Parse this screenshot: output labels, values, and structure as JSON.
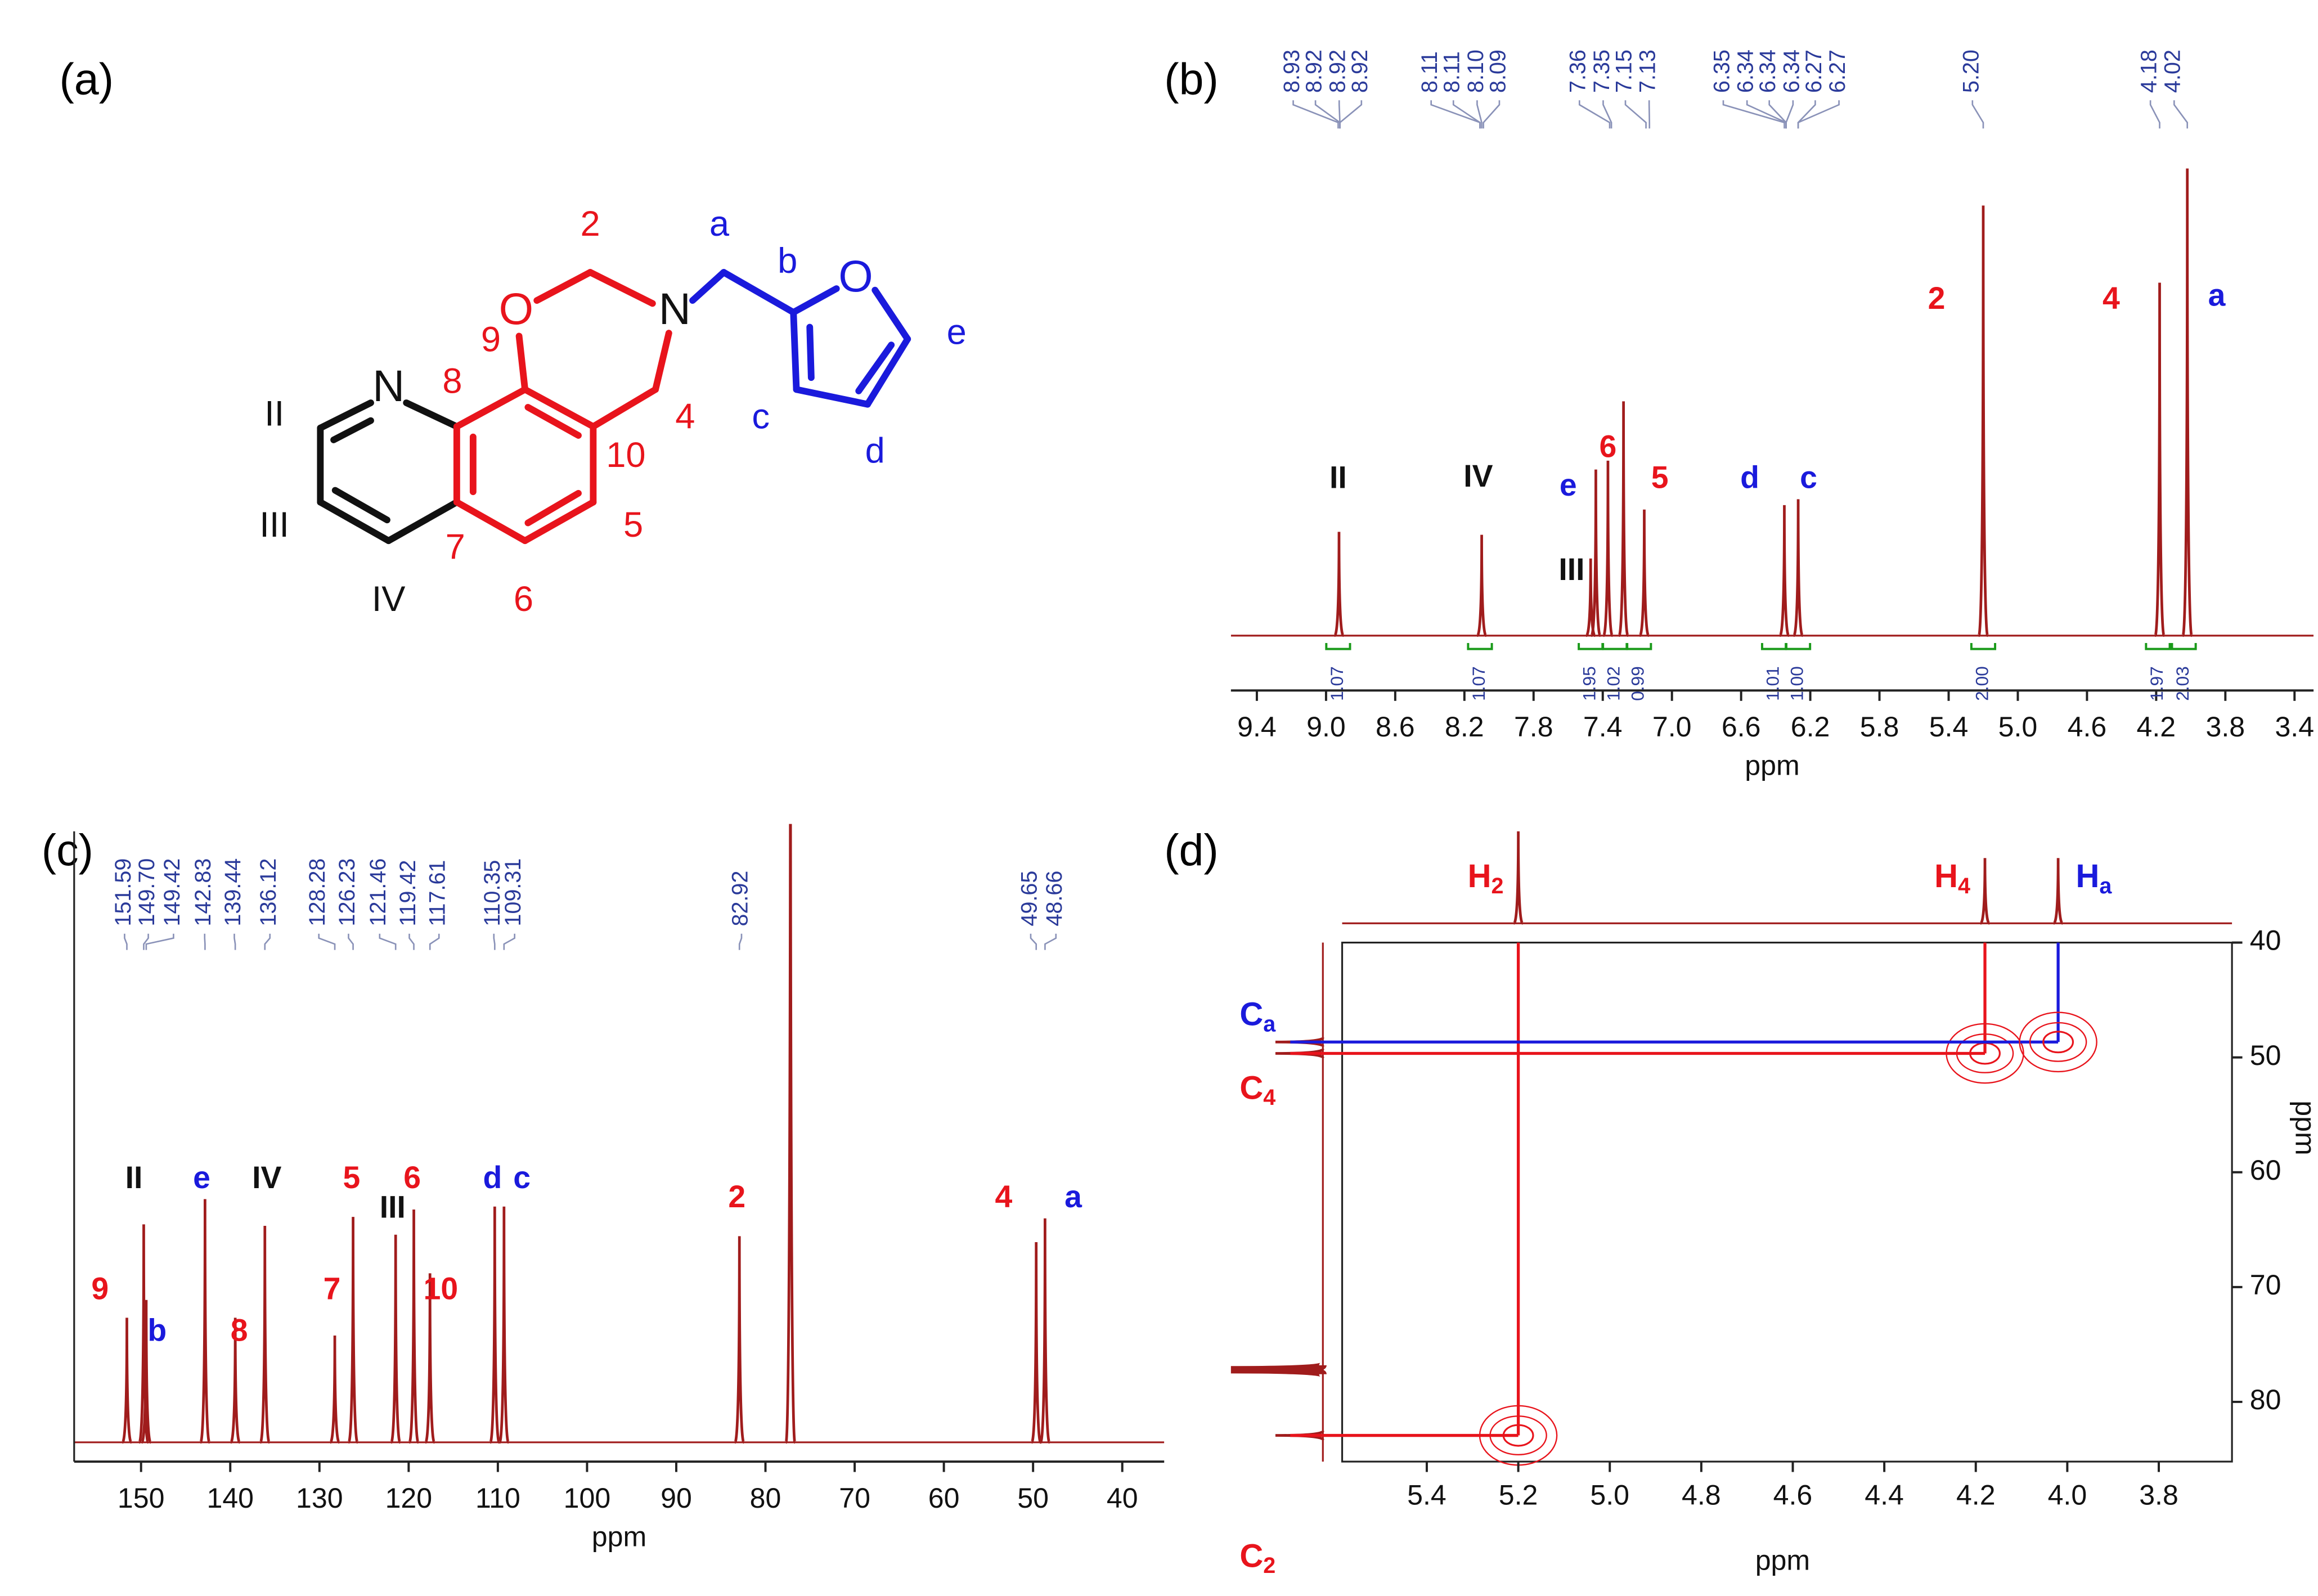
{
  "panel_labels": [
    "(a)",
    "(b)",
    "(c)",
    "(d)"
  ],
  "structure": {
    "labels": [
      "2",
      "a",
      "b",
      "O",
      "N",
      "O",
      "e",
      "N",
      "8",
      "9",
      "II",
      "4",
      "c",
      "10",
      "III",
      "5",
      "d",
      "7",
      "IV",
      "6"
    ]
  },
  "chart_data": [
    {
      "type": "spectrum",
      "x_label": "ppm",
      "color": "#a01c1c",
      "xlim": [
        9.55,
        3.29
      ],
      "xticks": [
        9.4,
        {
          "value": 9,
          "label": "9.0"
        },
        8.6,
        8.2,
        7.8,
        7.4,
        {
          "value": 7,
          "label": "7.0"
        },
        6.6,
        6.2,
        5.8,
        5.4,
        {
          "value": 5,
          "label": "5.0"
        },
        4.6,
        4.2,
        3.8,
        3.4
      ],
      "ylim": [
        0,
        318
      ],
      "peaks": {
        "x": [
          8.925,
          8.1,
          7.47,
          7.44,
          7.37,
          7.28,
          7.16,
          6.35,
          6.27,
          5.2,
          4.18,
          4.02
        ],
        "values": [
          70,
          68,
          52,
          112,
          118,
          158,
          85,
          88,
          92,
          290,
          238,
          315
        ]
      },
      "shift_labels": [
        "8.93",
        "8.92",
        "8.92",
        "8.92",
        "8.11",
        "8.11",
        "8.10",
        "8.09",
        "7.36",
        "7.35",
        "7.15",
        "7.13",
        "6.35",
        "6.34",
        "6.34",
        "6.34",
        "6.27",
        "6.27",
        "5.20",
        "4.18",
        "4.02"
      ],
      "integrals": {
        "x": [
          8.93,
          8.11,
          7.47,
          7.33,
          7.19,
          6.41,
          6.27,
          5.2,
          4.19,
          4.04
        ],
        "labels": [
          "1.07",
          "1.07",
          "1.95",
          "1.02",
          "0.99",
          "1.01",
          "1.00",
          "2.00",
          "1.97",
          "2.03"
        ]
      },
      "annotations": [
        {
          "text": "II",
          "color": "#111111",
          "x": 8.93,
          "y": 105
        },
        {
          "text": "IV",
          "color": "#111111",
          "x": 8.12,
          "y": 106
        },
        {
          "text": "e",
          "color": "#1a1adc",
          "x": 7.6,
          "y": 100
        },
        {
          "text": "6",
          "color": "#e8141c",
          "x": 7.37,
          "y": 126
        },
        {
          "text": "III",
          "color": "#111111",
          "x": 7.58,
          "y": 43
        },
        {
          "text": "5",
          "color": "#e8141c",
          "x": 7.07,
          "y": 105
        },
        {
          "text": "d",
          "color": "#1a1adc",
          "x": 6.55,
          "y": 105
        },
        {
          "text": "c",
          "color": "#1a1adc",
          "x": 6.21,
          "y": 105
        },
        {
          "text": "2",
          "color": "#e8141c",
          "x": 5.47,
          "y": 226
        },
        {
          "text": "4",
          "color": "#e8141c",
          "x": 4.46,
          "y": 226
        },
        {
          "text": "a",
          "color": "#1a1adc",
          "x": 3.85,
          "y": 228
        }
      ]
    },
    {
      "type": "spectrum",
      "x_label": "ppm",
      "color": "#a01c1c",
      "xlim": [
        157.5,
        35.3
      ],
      "xticks": [
        150,
        140,
        130,
        120,
        110,
        100,
        90,
        80,
        70,
        60,
        50,
        40
      ],
      "ylim": [
        0,
        412
      ],
      "peaks": {
        "x": [
          151.59,
          149.7,
          149.42,
          142.83,
          139.44,
          136.12,
          128.28,
          126.23,
          121.46,
          119.42,
          117.61,
          110.35,
          109.31,
          82.92,
          77.2,
          49.65,
          48.66
        ],
        "values": [
          84,
          147,
          96,
          164,
          84,
          146,
          72,
          152,
          140,
          157,
          114,
          159,
          159,
          139,
          600,
          135,
          151
        ]
      },
      "shift_labels": [
        "151.59",
        "149.70",
        "149.42",
        "142.83",
        "139.44",
        "136.12",
        "128.28",
        "126.23",
        "121.46",
        "119.42",
        "117.61",
        "110.35",
        "109.31",
        "82.92",
        "49.65",
        "48.66"
      ],
      "annotations": [
        {
          "text": "9",
          "color": "#e8141c",
          "x": 154.6,
          "y": 102
        },
        {
          "text": "b",
          "color": "#1a1adc",
          "x": 148.2,
          "y": 74
        },
        {
          "text": "8",
          "color": "#e8141c",
          "x": 139,
          "y": 74
        },
        {
          "text": "II",
          "color": "#111111",
          "x": 150.8,
          "y": 177
        },
        {
          "text": "e",
          "color": "#1a1adc",
          "x": 143.2,
          "y": 177
        },
        {
          "text": "IV",
          "color": "#111111",
          "x": 135.9,
          "y": 177
        },
        {
          "text": "7",
          "color": "#e8141c",
          "x": 128.6,
          "y": 102
        },
        {
          "text": "5",
          "color": "#e8141c",
          "x": 126.4,
          "y": 177
        },
        {
          "text": "III",
          "color": "#111111",
          "x": 121.8,
          "y": 157
        },
        {
          "text": "6",
          "color": "#e8141c",
          "x": 119.6,
          "y": 177
        },
        {
          "text": "10",
          "color": "#e8141c",
          "x": 116.4,
          "y": 102
        },
        {
          "text": "d",
          "color": "#1a1adc",
          "x": 110.6,
          "y": 177
        },
        {
          "text": "c",
          "color": "#1a1adc",
          "x": 107.3,
          "y": 177
        },
        {
          "text": "2",
          "color": "#e8141c",
          "x": 83.2,
          "y": 164
        },
        {
          "text": "4",
          "color": "#e8141c",
          "x": 53.3,
          "y": 164
        },
        {
          "text": "a",
          "color": "#1a1adc",
          "x": 45.5,
          "y": 164
        }
      ]
    },
    {
      "type": "hsqc",
      "x_label": "ppm",
      "y_label": "ppm",
      "color": "#a01c1c",
      "xlim": [
        5.585,
        3.64
      ],
      "xticks": [
        5.4,
        5.2,
        {
          "value": 5,
          "label": "5.0"
        },
        4.8,
        4.6,
        4.4,
        4.2,
        {
          "value": 4,
          "label": "4.0"
        },
        3.8
      ],
      "ylim": [
        40,
        85.2
      ],
      "yticks": [
        40,
        50,
        60,
        70,
        80
      ],
      "f2_projection": {
        "x": [
          5.2,
          4.18,
          4.02
        ],
        "values": [
          62,
          44,
          44
        ]
      },
      "f1_projection": {
        "y": [
          48.66,
          49.65,
          77.2,
          82.92
        ],
        "values": [
          32,
          32,
          62,
          32
        ]
      },
      "correlations": {
        "x": [
          5.2,
          4.18,
          4.02
        ],
        "y": [
          82.92,
          49.65,
          48.66
        ],
        "labels_x": [
          "H2",
          "H4",
          "Ha"
        ],
        "labels_y": [
          "C2",
          "C4",
          "Ca"
        ],
        "colors": [
          "#e8141c",
          "#e8141c",
          "#1a1adc"
        ]
      }
    }
  ]
}
